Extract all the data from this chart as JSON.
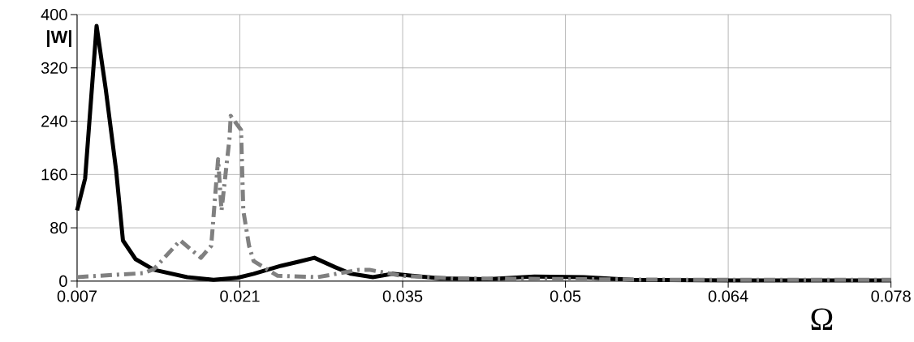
{
  "chart_data": {
    "type": "line",
    "xlabel": "Ω",
    "ylabel": "|W|",
    "xlim": [
      0.007,
      0.078
    ],
    "ylim": [
      0,
      400
    ],
    "xticks": [
      0.007,
      {
        "value": 0.0212,
        "label": "0.021"
      },
      {
        "value": 0.0354,
        "label": "0.035"
      },
      {
        "value": 0.0496,
        "label": "0.05"
      },
      {
        "value": 0.0638,
        "label": "0.064"
      },
      0.078
    ],
    "yticks": [
      0,
      80,
      160,
      240,
      320,
      400
    ],
    "grid": true,
    "series": [
      {
        "color": "#000000",
        "line_style": "solid",
        "x": [
          0.007,
          0.0077,
          0.0087,
          0.0095,
          0.0104,
          0.011,
          0.0121,
          0.0137,
          0.0166,
          0.0189,
          0.021,
          0.0224,
          0.0248,
          0.0263,
          0.0277,
          0.0295,
          0.0309,
          0.0328,
          0.0345,
          0.0387,
          0.0428,
          0.0469,
          0.0512,
          0.0555,
          0.064,
          0.078
        ],
        "values": [
          106,
          154,
          383,
          288,
          167,
          61,
          33,
          17,
          6,
          2,
          5,
          11,
          23,
          29,
          35,
          21,
          11,
          6,
          11,
          4,
          3,
          7,
          6,
          2,
          1,
          1
        ]
      },
      {
        "color": "#808080",
        "line_style": "dashdot",
        "x": [
          0.007,
          0.0128,
          0.0137,
          0.016,
          0.0178,
          0.0187,
          0.0193,
          0.0196,
          0.0203,
          0.0204,
          0.0213,
          0.0215,
          0.022,
          0.0224,
          0.0245,
          0.028,
          0.0316,
          0.0325,
          0.0353,
          0.04,
          0.05,
          0.06,
          0.078
        ],
        "values": [
          6,
          12,
          18,
          61,
          35,
          53,
          183,
          106,
          215,
          248,
          227,
          106,
          53,
          30,
          8,
          6,
          17,
          17,
          8,
          4,
          3,
          2,
          2
        ]
      }
    ]
  }
}
